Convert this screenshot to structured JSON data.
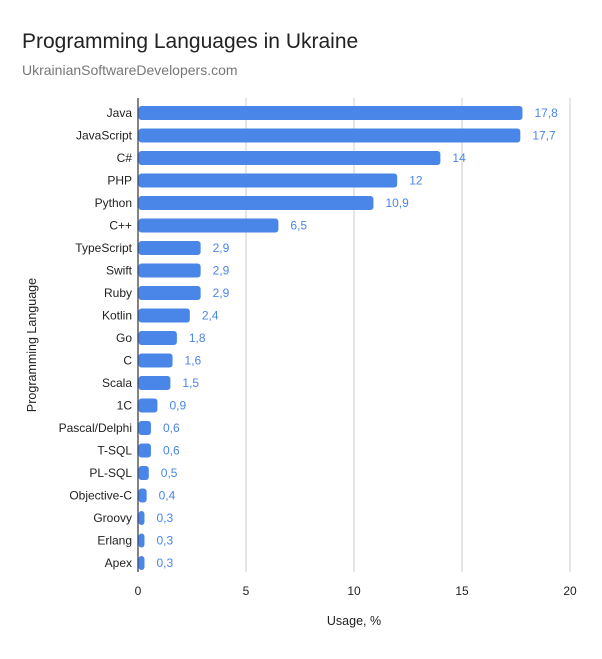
{
  "chart_data": {
    "type": "bar",
    "orientation": "horizontal",
    "title": "Programming Languages in Ukraine",
    "subtitle": "UkrainianSoftwareDevelopers.com",
    "xlabel": "Usage, %",
    "ylabel": "Programming Language",
    "xlim": [
      0,
      20
    ],
    "xticks": [
      0,
      5,
      10,
      15,
      20
    ],
    "grid": true,
    "legend": "none",
    "bar_color": "#4a86e8",
    "label_color": "#4a86e8",
    "categories": [
      "Java",
      "JavaScript",
      "C#",
      "PHP",
      "Python",
      "C++",
      "TypeScript",
      "Swift",
      "Ruby",
      "Kotlin",
      "Go",
      "C",
      "Scala",
      "1C",
      "Pascal/Delphi",
      "T-SQL",
      "PL-SQL",
      "Objective-C",
      "Groovy",
      "Erlang",
      "Apex"
    ],
    "values": [
      17.8,
      17.7,
      14,
      12,
      10.9,
      6.5,
      2.9,
      2.9,
      2.9,
      2.4,
      1.8,
      1.6,
      1.5,
      0.9,
      0.6,
      0.6,
      0.5,
      0.4,
      0.3,
      0.3,
      0.3
    ],
    "data_labels": [
      "17,8",
      "17,7",
      "14",
      "12",
      "10,9",
      "6,5",
      "2,9",
      "2,9",
      "2,9",
      "2,4",
      "1,8",
      "1,6",
      "1,5",
      "0,9",
      "0,6",
      "0,6",
      "0,5",
      "0,4",
      "0,3",
      "0,3",
      "0,3"
    ]
  }
}
